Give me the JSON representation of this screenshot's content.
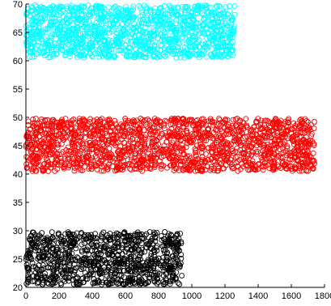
{
  "chart_data": {
    "type": "scatter",
    "title": "",
    "xlabel": "",
    "ylabel": "",
    "xlim": [
      0,
      1800
    ],
    "ylim": [
      20,
      70
    ],
    "xticks": [
      "0",
      "200",
      "400",
      "600",
      "800",
      "1000",
      "1200",
      "1400",
      "1600",
      "1800"
    ],
    "yticks": [
      "20",
      "25",
      "30",
      "35",
      "40",
      "45",
      "50",
      "55",
      "60",
      "65",
      "70"
    ],
    "grid": false,
    "legend": "none",
    "marker": "open-circle",
    "series": [
      {
        "color": "#000000",
        "x_range": [
          0,
          940
        ],
        "y_range": [
          20.5,
          29.8
        ],
        "count": 950
      },
      {
        "color": "#ff0000",
        "x_range": [
          0,
          1740
        ],
        "y_range": [
          40.5,
          49.8
        ],
        "count": 1750
      },
      {
        "color": "#00ffff",
        "x_range": [
          0,
          1260
        ],
        "y_range": [
          60.5,
          69.8
        ],
        "count": 1270
      }
    ]
  }
}
